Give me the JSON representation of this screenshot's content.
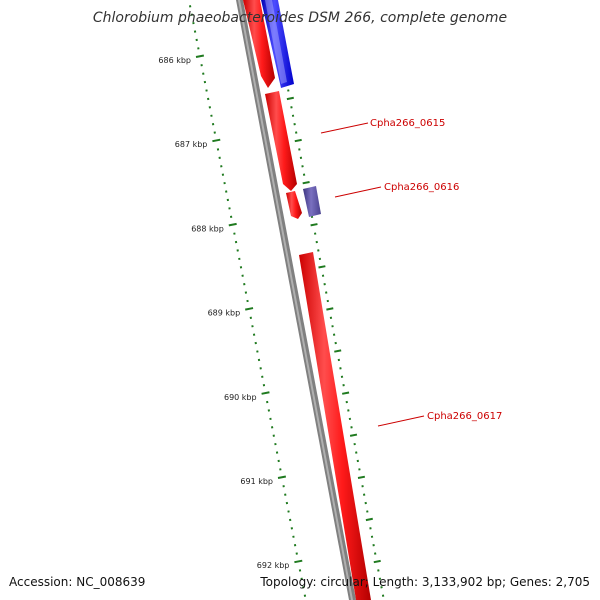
{
  "title": "Chlorobium phaeobacteroides DSM 266, complete genome",
  "footer": {
    "accession": "Accession: NC_008639",
    "summary": "Topology: circular; Length: 3,133,902 bp; Genes: 2,705"
  },
  "scale": {
    "unit": "kbp",
    "ticks": [
      {
        "kbp": 686,
        "label": "686 kbp"
      },
      {
        "kbp": 687,
        "label": "687 kbp"
      },
      {
        "kbp": 688,
        "label": "688 kbp"
      },
      {
        "kbp": 689,
        "label": "689 kbp"
      },
      {
        "kbp": 690,
        "label": "690 kbp"
      },
      {
        "kbp": 691,
        "label": "691 kbp"
      },
      {
        "kbp": 692,
        "label": "692 kbp"
      }
    ]
  },
  "genes": [
    {
      "label": "Cpha266_0615"
    },
    {
      "label": "Cpha266_0616"
    },
    {
      "label": "Cpha266_0617"
    }
  ],
  "colors": {
    "forward_cds": "#ff1a1a",
    "reverse_cds": "#1a1aff",
    "other_feature": "#5a4fa0",
    "backbone": "#808080",
    "ticks": "#1f7a1f",
    "gene_label": "#cc0000"
  }
}
